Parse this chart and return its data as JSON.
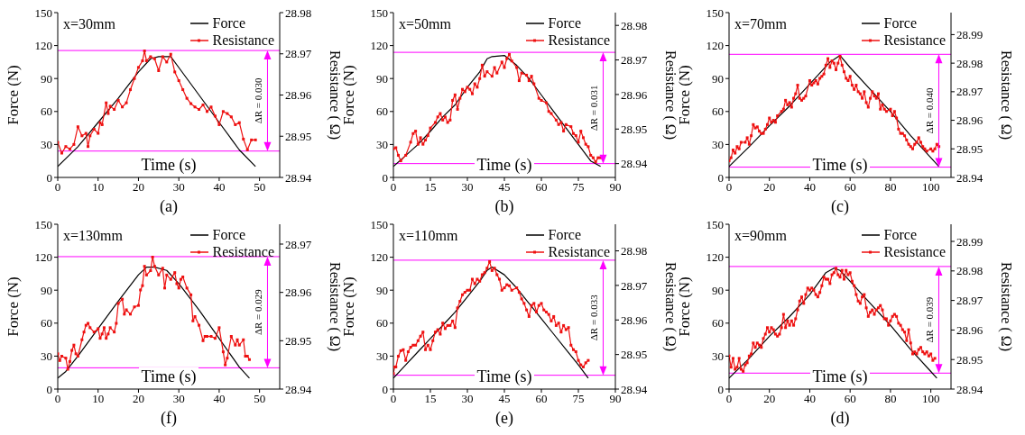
{
  "chart_data": [
    {
      "type": "line",
      "title": "(a)",
      "xlabel": "Time (s)",
      "ylabel": "Force (N)",
      "y2label": "Resistance ( Ω)",
      "annotations": [
        "x=30mm",
        "ΔR = 0.030"
      ],
      "legend": "top right",
      "xlim": [
        0,
        55
      ],
      "xticks": [
        0,
        10,
        20,
        30,
        40,
        50
      ],
      "ylim": [
        0,
        150
      ],
      "yticks": [
        0,
        30,
        60,
        90,
        120,
        150
      ],
      "y2lim": [
        28.94,
        28.98
      ],
      "y2ticks": [
        28.94,
        28.95,
        28.96,
        28.97,
        28.98
      ],
      "ref_lines": [
        {
          "axis": "y2",
          "value": 28.9708,
          "color": "#ff00ff"
        },
        {
          "axis": "y2",
          "value": 28.9464,
          "color": "#ff00ff"
        }
      ],
      "series": [
        {
          "name": "Force",
          "color": "#000000",
          "marker": "none",
          "x": [
            0,
            5,
            10,
            15,
            20,
            23,
            25,
            28,
            30,
            35,
            40,
            45,
            49
          ],
          "values": [
            10,
            28,
            50,
            72,
            96,
            108,
            110,
            110,
            100,
            75,
            50,
            25,
            10
          ]
        },
        {
          "name": "Resistance",
          "color": "#ee1111",
          "marker": "square",
          "axis": "y2",
          "x": [
            0,
            1,
            2,
            3,
            4,
            5,
            6,
            7,
            7.5,
            8,
            9,
            10,
            10.5,
            11,
            12,
            12.5,
            13,
            14,
            15,
            16,
            17,
            18,
            19,
            20,
            21,
            21.5,
            22,
            23,
            24,
            25,
            26,
            27,
            28,
            29,
            30,
            31,
            32,
            33,
            34,
            35,
            36,
            37,
            38,
            39,
            40,
            41,
            42,
            43,
            44,
            45,
            46,
            47,
            48,
            49
          ],
          "values": [
            28.9485,
            28.9459,
            28.9475,
            28.9469,
            28.948,
            28.9523,
            28.9501,
            28.9507,
            28.9475,
            28.9501,
            28.9517,
            28.9507,
            28.9533,
            28.9528,
            28.9581,
            28.9555,
            28.9573,
            28.9565,
            28.9587,
            28.9571,
            28.9581,
            28.9613,
            28.964,
            28.9667,
            28.9683,
            28.9707,
            28.9683,
            28.9693,
            28.9688,
            28.9659,
            28.9693,
            28.968,
            28.9699,
            28.9656,
            28.9635,
            28.9613,
            28.9592,
            28.9579,
            28.9571,
            28.9565,
            28.9576,
            28.956,
            28.9571,
            28.9549,
            28.9528,
            28.956,
            28.9555,
            28.9547,
            28.9528,
            28.9533,
            28.9493,
            28.9467,
            28.9491,
            28.9491
          ]
        }
      ]
    },
    {
      "type": "line",
      "title": "(b)",
      "xlabel": "Time (s)",
      "ylabel": "Force (N)",
      "y2label": "Resistance ( Ω)",
      "annotations": [
        "x=50mm",
        "ΔR = 0.031"
      ],
      "legend": "top right",
      "xlim": [
        0,
        90
      ],
      "xticks": [
        0,
        15,
        30,
        45,
        60,
        75,
        90
      ],
      "ylim": [
        0,
        150
      ],
      "yticks": [
        0,
        30,
        60,
        90,
        120,
        150
      ],
      "y2lim": [
        28.936,
        28.9837
      ],
      "y2ticks": [
        28.94,
        28.95,
        28.96,
        28.97,
        28.98
      ],
      "ref_lines": [
        {
          "axis": "y2",
          "value": 28.9722,
          "color": "#ff00ff"
        },
        {
          "axis": "y2",
          "value": 28.94,
          "color": "#ff00ff"
        }
      ],
      "series": [
        {
          "name": "Force",
          "color": "#000000",
          "marker": "none",
          "x": [
            0,
            5,
            10,
            15,
            20,
            25,
            30,
            35,
            38,
            40,
            45,
            50,
            55,
            60,
            65,
            70,
            75,
            80,
            84
          ],
          "values": [
            10,
            20,
            30,
            42,
            55,
            66,
            82,
            96,
            108,
            110,
            111,
            102,
            90,
            75,
            60,
            45,
            30,
            15,
            10
          ]
        },
        {
          "name": "Resistance",
          "color": "#ee1111",
          "marker": "square",
          "axis": "y2",
          "x": [
            0,
            1,
            2,
            3,
            5,
            7,
            8,
            9,
            10,
            11,
            12,
            13,
            14,
            15,
            17,
            18,
            19,
            20,
            21,
            22,
            23,
            24,
            25,
            26,
            27,
            28,
            29,
            30,
            31,
            32,
            33,
            34,
            35,
            36,
            37,
            38,
            40,
            41,
            42,
            44,
            45,
            46,
            47,
            48,
            50,
            51,
            52,
            54,
            55,
            56,
            57,
            59,
            60,
            62,
            63,
            64,
            66,
            67,
            68,
            69,
            70,
            72,
            73,
            74,
            75,
            76,
            77,
            78,
            79,
            80,
            81,
            82,
            83,
            84
          ],
          "values": [
            28.9443,
            28.9446,
            28.9424,
            28.9408,
            28.9424,
            28.9462,
            28.9487,
            28.9494,
            28.9456,
            28.9475,
            28.9456,
            28.9468,
            28.9481,
            28.9503,
            28.9519,
            28.9535,
            28.9545,
            28.9526,
            28.9535,
            28.9519,
            28.9526,
            28.9583,
            28.9599,
            28.9557,
            28.9589,
            28.9615,
            28.9608,
            28.9621,
            28.9615,
            28.9602,
            28.9631,
            28.9621,
            28.9646,
            28.9685,
            28.9653,
            28.9666,
            28.9653,
            28.9678,
            28.9662,
            28.9694,
            28.9678,
            28.9704,
            28.9716,
            28.9697,
            28.9678,
            28.964,
            28.9662,
            28.9656,
            28.964,
            28.9653,
            28.9631,
            28.9589,
            28.9583,
            28.9576,
            28.9551,
            28.9545,
            28.9526,
            28.9513,
            28.9519,
            28.9494,
            28.9513,
            28.9507,
            28.9487,
            28.9481,
            28.9462,
            28.9494,
            28.9475,
            28.9456,
            28.9449,
            28.9424,
            28.9417,
            28.9405,
            28.9417,
            28.9417
          ]
        }
      ]
    },
    {
      "type": "line",
      "title": "(c)",
      "xlabel": "Time (s)",
      "ylabel": "Force (N)",
      "y2label": "Resistance ( Ω)",
      "annotations": [
        "x=70mm",
        "ΔR = 0.040"
      ],
      "legend": "top right",
      "xlim": [
        0,
        110
      ],
      "xticks": [
        0,
        20,
        40,
        60,
        80,
        100
      ],
      "ylim": [
        0,
        150
      ],
      "yticks": [
        0,
        30,
        60,
        90,
        120,
        150
      ],
      "y2lim": [
        28.94,
        28.9977
      ],
      "y2ticks": [
        28.94,
        28.95,
        28.96,
        28.97,
        28.98,
        28.99
      ],
      "ref_lines": [
        {
          "axis": "y2",
          "value": 28.9831,
          "color": "#ff00ff"
        },
        {
          "axis": "y2",
          "value": 28.9436,
          "color": "#ff00ff"
        }
      ],
      "series": [
        {
          "name": "Force",
          "color": "#000000",
          "marker": "none",
          "x": [
            0,
            10,
            20,
            30,
            40,
            50,
            55,
            60,
            70,
            80,
            90,
            100,
            104
          ],
          "values": [
            10,
            28,
            47,
            65,
            85,
            105,
            111,
            100,
            80,
            60,
            38,
            18,
            10
          ]
        },
        {
          "name": "Resistance",
          "color": "#ee1111",
          "marker": "square",
          "axis": "y2",
          "x": [
            0,
            1,
            2,
            3,
            4,
            5,
            6,
            8,
            9,
            10,
            11,
            12,
            13,
            14,
            15,
            16,
            17,
            18,
            19,
            20,
            21,
            22,
            23,
            24,
            26,
            27,
            28,
            29,
            30,
            31,
            32,
            33,
            34,
            35,
            36,
            37,
            38,
            40,
            41,
            42,
            43,
            44,
            45,
            46,
            47,
            48,
            49,
            50,
            51,
            52,
            53,
            54,
            55,
            56,
            57,
            58,
            59,
            60,
            61,
            62,
            63,
            64,
            65,
            66,
            67,
            68,
            69,
            70,
            71,
            72,
            73,
            74,
            75,
            76,
            77,
            78,
            80,
            81,
            82,
            83,
            84,
            85,
            86,
            87,
            88,
            89,
            90,
            91,
            92,
            93,
            94,
            95,
            96,
            97,
            98,
            100,
            101,
            102,
            103,
            104
          ],
          "values": [
            28.9458,
            28.9469,
            28.9496,
            28.9485,
            28.9508,
            28.95,
            28.9523,
            28.9523,
            28.9539,
            28.9516,
            28.9546,
            28.9585,
            28.9573,
            28.9577,
            28.9562,
            28.9554,
            28.9554,
            28.9569,
            28.9585,
            28.9608,
            28.9593,
            28.96,
            28.9593,
            28.9616,
            28.9631,
            28.9639,
            28.967,
            28.9654,
            28.9662,
            28.9646,
            28.9677,
            28.9693,
            28.9723,
            28.9677,
            28.967,
            28.9677,
            28.9685,
            28.9739,
            28.9723,
            28.9731,
            28.9739,
            28.9727,
            28.9747,
            28.9754,
            28.9762,
            28.9793,
            28.9816,
            28.9785,
            28.9808,
            28.98,
            28.9777,
            28.98,
            28.9824,
            28.9793,
            28.977,
            28.9747,
            28.9739,
            28.9754,
            28.9723,
            28.9708,
            28.9723,
            28.97,
            28.9693,
            28.9677,
            28.97,
            28.9662,
            28.9646,
            28.9677,
            28.97,
            28.9685,
            28.9677,
            28.9693,
            28.9639,
            28.9654,
            28.9639,
            28.9631,
            28.9639,
            28.9616,
            28.9631,
            28.9608,
            28.9569,
            28.9554,
            28.9554,
            28.9546,
            28.9531,
            28.9516,
            28.9508,
            28.95,
            28.9516,
            28.9523,
            28.9539,
            28.9523,
            28.9508,
            28.95,
            28.9492,
            28.95,
            28.9492,
            28.95,
            28.9516,
            28.9508
          ]
        }
      ]
    },
    {
      "type": "line",
      "title": "(f)",
      "xlabel": "Time (s)",
      "ylabel": "Force (N)",
      "y2label": "Resistance ( Ω)",
      "annotations": [
        "x=130mm",
        "ΔR = 0.029"
      ],
      "legend": "top right",
      "xlim": [
        0,
        55
      ],
      "xticks": [
        0,
        10,
        20,
        30,
        40,
        50
      ],
      "ylim": [
        0,
        150
      ],
      "yticks": [
        0,
        30,
        60,
        90,
        120,
        150
      ],
      "y2lim": [
        28.94,
        28.9741
      ],
      "y2ticks": [
        28.94,
        28.95,
        28.96,
        28.97
      ],
      "ref_lines": [
        {
          "axis": "y2",
          "value": 28.9674,
          "color": "#ff00ff"
        },
        {
          "axis": "y2",
          "value": 28.9444,
          "color": "#ff00ff"
        }
      ],
      "series": [
        {
          "name": "Force",
          "color": "#000000",
          "marker": "none",
          "x": [
            0,
            2,
            5,
            10,
            15,
            20,
            22,
            24,
            27,
            30,
            35,
            40,
            45,
            47.5
          ],
          "values": [
            10,
            16,
            30,
            55,
            80,
            104,
            111,
            111,
            108,
            96,
            72,
            46,
            20,
            10
          ]
        },
        {
          "name": "Resistance",
          "color": "#ee1111",
          "marker": "square",
          "axis": "y2",
          "x": [
            0,
            0.5,
            1,
            2,
            2.5,
            3,
            3.5,
            4,
            4.5,
            5,
            6,
            6.5,
            7,
            7.5,
            8,
            9,
            10,
            10.5,
            11,
            11.5,
            12,
            12.5,
            13,
            14,
            14.5,
            15,
            16,
            16.5,
            17,
            18,
            19,
            20,
            20.5,
            21,
            21.5,
            22,
            23,
            23.5,
            24,
            25,
            26,
            26.5,
            27,
            28,
            29,
            29.5,
            30,
            30.5,
            31,
            32,
            33,
            33.5,
            34,
            35,
            36,
            36.5,
            37,
            38,
            39,
            40,
            41,
            41.5,
            42,
            43,
            44,
            44.5,
            45,
            46,
            46.5,
            47,
            47.5
          ],
          "values": [
            28.9473,
            28.9459,
            28.9468,
            28.9464,
            28.9441,
            28.9457,
            28.948,
            28.9491,
            28.9473,
            28.9468,
            28.9502,
            28.9518,
            28.9532,
            28.9536,
            28.9527,
            28.9518,
            28.9525,
            28.9505,
            28.9514,
            28.9527,
            28.9505,
            28.9514,
            28.9527,
            28.9518,
            28.9536,
            28.9577,
            28.9586,
            28.9555,
            28.9564,
            28.9555,
            28.957,
            28.9573,
            28.9605,
            28.9614,
            28.9654,
            28.9636,
            28.9645,
            28.9673,
            28.9654,
            28.9636,
            28.965,
            28.9609,
            28.9636,
            28.9627,
            28.9641,
            28.9618,
            28.9609,
            28.9627,
            28.9632,
            28.9609,
            28.9595,
            28.9541,
            28.955,
            28.9532,
            28.95,
            28.9509,
            28.9509,
            28.9509,
            28.9505,
            28.9527,
            28.9477,
            28.945,
            28.9464,
            28.9509,
            28.9491,
            28.9502,
            28.9491,
            28.9502,
            28.9468,
            28.9468,
            28.9461
          ]
        }
      ]
    },
    {
      "type": "line",
      "title": "(e)",
      "xlabel": "Time (s)",
      "ylabel": "Force (N)",
      "y2label": "Resistance ( Ω)",
      "annotations": [
        "x=110mm",
        "ΔR = 0.033"
      ],
      "legend": "top right",
      "xlim": [
        0,
        90
      ],
      "xticks": [
        0,
        15,
        30,
        45,
        60,
        75,
        90
      ],
      "ylim": [
        0,
        150
      ],
      "yticks": [
        0,
        30,
        60,
        90,
        120,
        150
      ],
      "y2lim": [
        28.94,
        28.9877
      ],
      "y2ticks": [
        28.94,
        28.95,
        28.96,
        28.97,
        28.98
      ],
      "ref_lines": [
        {
          "axis": "y2",
          "value": 28.9773,
          "color": "#ff00ff"
        },
        {
          "axis": "y2",
          "value": 28.944,
          "color": "#ff00ff"
        }
      ],
      "series": [
        {
          "name": "Force",
          "color": "#000000",
          "marker": "none",
          "x": [
            0,
            5,
            10,
            15,
            20,
            25,
            30,
            35,
            38,
            40,
            45,
            50,
            55,
            60,
            65,
            70,
            75,
            79
          ],
          "values": [
            10,
            22,
            34,
            46,
            58,
            70,
            84,
            98,
            108,
            111,
            104,
            92,
            78,
            64,
            50,
            36,
            22,
            10
          ]
        },
        {
          "name": "Resistance",
          "color": "#ee1111",
          "marker": "square",
          "axis": "y2",
          "x": [
            0,
            0.5,
            1,
            2,
            3,
            4,
            5,
            6,
            7,
            8,
            9,
            10,
            11,
            12,
            13,
            14,
            15,
            16,
            17,
            18,
            19,
            20,
            21,
            22,
            23,
            24,
            25,
            26,
            27,
            28,
            29,
            30,
            31,
            32,
            33,
            34,
            35,
            36,
            37,
            38,
            39,
            40,
            41,
            42,
            43,
            44,
            45,
            46,
            47,
            48,
            50,
            51,
            52,
            53,
            54,
            55,
            56,
            57,
            58,
            59,
            60,
            61,
            62,
            63,
            64,
            65,
            66,
            67,
            68,
            69,
            70,
            71,
            72,
            73,
            74,
            75,
            76,
            77,
            78,
            79
          ],
          "values": [
            28.9445,
            28.9464,
            28.9464,
            28.9495,
            28.9511,
            28.9514,
            28.9483,
            28.9508,
            28.9521,
            28.9527,
            28.9527,
            28.954,
            28.9553,
            28.9565,
            28.9514,
            28.9527,
            28.9514,
            28.954,
            28.9565,
            28.9572,
            28.9559,
            28.9591,
            28.9575,
            28.9584,
            28.9584,
            28.9597,
            28.9578,
            28.9635,
            28.9654,
            28.9673,
            28.968,
            28.9686,
            28.9686,
            28.9718,
            28.9705,
            28.9718,
            28.9712,
            28.9731,
            28.9737,
            28.975,
            28.9769,
            28.9743,
            28.975,
            28.9731,
            28.9718,
            28.9686,
            28.9693,
            28.9702,
            28.9699,
            28.9686,
            28.9693,
            28.968,
            28.9661,
            28.9648,
            28.9629,
            28.961,
            28.9642,
            28.9648,
            28.9623,
            28.9642,
            28.9648,
            28.9629,
            28.9623,
            28.9616,
            28.9597,
            28.961,
            28.9584,
            28.9591,
            28.9565,
            28.9584,
            28.9572,
            28.9578,
            28.9527,
            28.9514,
            28.9508,
            28.9483,
            28.947,
            28.9464,
            28.9476,
            28.9483
          ]
        }
      ]
    },
    {
      "type": "line",
      "title": "(d)",
      "xlabel": "Time (s)",
      "ylabel": "Force (N)",
      "y2label": "Resistance ( Ω)",
      "annotations": [
        "x=90mm",
        "ΔR = 0.039"
      ],
      "legend": "top right",
      "xlim": [
        0,
        110
      ],
      "xticks": [
        0,
        20,
        40,
        60,
        80,
        100
      ],
      "ylim": [
        0,
        150
      ],
      "yticks": [
        0,
        30,
        60,
        90,
        120,
        150
      ],
      "y2lim": [
        28.94,
        28.9958
      ],
      "y2ticks": [
        28.94,
        28.95,
        28.96,
        28.97,
        28.98,
        28.99
      ],
      "ref_lines": [
        {
          "axis": "y2",
          "value": 28.9815,
          "color": "#ff00ff"
        },
        {
          "axis": "y2",
          "value": 28.9454,
          "color": "#ff00ff"
        }
      ],
      "series": [
        {
          "name": "Force",
          "color": "#000000",
          "marker": "none",
          "x": [
            0,
            10,
            20,
            30,
            40,
            48,
            52,
            55,
            60,
            70,
            80,
            90,
            100,
            103
          ],
          "values": [
            10,
            28,
            48,
            66,
            86,
            106,
            110,
            108,
            98,
            78,
            58,
            36,
            16,
            10
          ]
        },
        {
          "name": "Resistance",
          "color": "#ee1111",
          "marker": "square",
          "axis": "y2",
          "x": [
            0,
            1,
            2,
            3,
            4,
            5,
            6,
            7,
            8,
            9,
            10,
            11,
            12,
            13,
            14,
            15,
            16,
            17,
            18,
            19,
            20,
            21,
            22,
            23,
            24,
            25,
            26,
            27,
            28,
            29,
            30,
            31,
            32,
            33,
            34,
            35,
            36,
            37,
            38,
            39,
            40,
            41,
            42,
            43,
            44,
            45,
            46,
            47,
            48,
            49,
            50,
            51,
            52,
            53,
            54,
            55,
            56,
            57,
            58,
            59,
            60,
            61,
            62,
            63,
            64,
            65,
            66,
            67,
            68,
            69,
            70,
            71,
            72,
            73,
            74,
            75,
            76,
            77,
            78,
            79,
            80,
            81,
            82,
            83,
            84,
            85,
            86,
            87,
            88,
            89,
            90,
            91,
            92,
            93,
            94,
            95,
            96,
            97,
            98,
            99,
            100,
            101,
            102
          ],
          "values": [
            28.9512,
            28.9474,
            28.9504,
            28.9467,
            28.9474,
            28.9504,
            28.9467,
            28.946,
            28.9482,
            28.9489,
            28.9512,
            28.9519,
            28.9556,
            28.9541,
            28.9556,
            28.9549,
            28.9541,
            28.9571,
            28.9586,
            28.9608,
            28.9593,
            28.9608,
            28.9601,
            28.9586,
            28.9579,
            28.9586,
            28.9608,
            28.9653,
            28.9608,
            28.9631,
            28.9616,
            28.9631,
            28.9616,
            28.9638,
            28.9668,
            28.9698,
            28.9712,
            28.969,
            28.972,
            28.9742,
            28.9735,
            28.9742,
            28.9735,
            28.972,
            28.9712,
            28.9727,
            28.975,
            28.9779,
            28.9772,
            28.9772,
            28.9757,
            28.9787,
            28.9794,
            28.9809,
            28.9787,
            28.9779,
            28.9802,
            28.9772,
            28.9802,
            28.9787,
            28.9794,
            28.9765,
            28.975,
            28.972,
            28.9698,
            28.969,
            28.9712,
            28.972,
            28.9675,
            28.9646,
            28.966,
            28.9668,
            28.9653,
            28.9668,
            28.9675,
            28.9683,
            28.9668,
            28.9638,
            28.9638,
            28.9616,
            28.9631,
            28.9646,
            28.9653,
            28.9646,
            28.9623,
            28.9616,
            28.9601,
            28.9593,
            28.9564,
            28.9601,
            28.9556,
            28.9519,
            28.9526,
            28.9519,
            28.9534,
            28.9541,
            28.9526,
            28.9519,
            28.9526,
            28.9512,
            28.9519,
            28.9497,
            28.9504
          ]
        }
      ]
    }
  ]
}
